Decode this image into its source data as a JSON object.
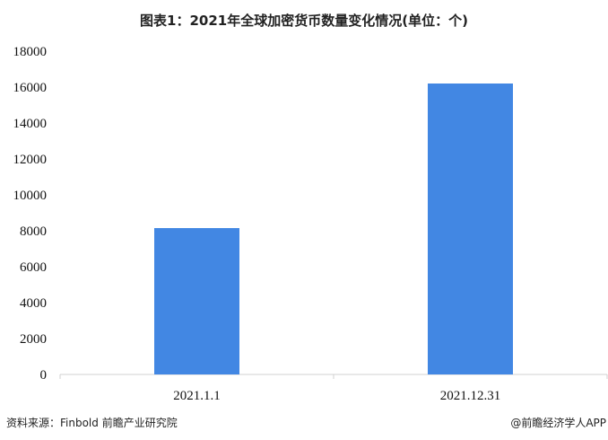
{
  "chart_data": {
    "type": "bar",
    "title": "图表1：2021年全球加密货币数量变化情况(单位：个)",
    "categories": [
      "2021.1.1",
      "2021.12.31"
    ],
    "values": [
      8150,
      16200
    ],
    "ylim": [
      0,
      18000
    ],
    "yticks": [
      0,
      2000,
      4000,
      6000,
      8000,
      10000,
      12000,
      14000,
      16000,
      18000
    ],
    "grid": false,
    "bar_color": "#4287e3"
  },
  "footer": {
    "source": "资料来源：Finbold 前瞻产业研究院",
    "credit": "@前瞻经济学人APP"
  }
}
